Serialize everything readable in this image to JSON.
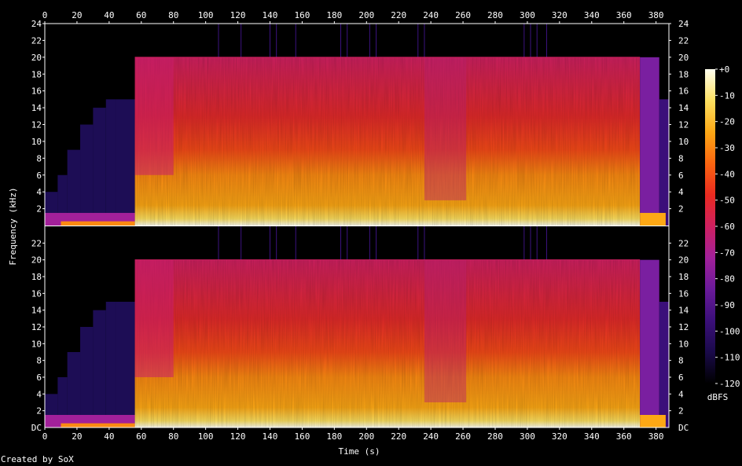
{
  "chart_data": {
    "type": "heatmap",
    "title": "",
    "xlabel": "Time (s)",
    "ylabel": "Frequency (kHz)",
    "xlim": [
      0,
      388
    ],
    "ylim": [
      0,
      24
    ],
    "x_ticks": [
      0,
      20,
      40,
      60,
      80,
      100,
      120,
      140,
      160,
      180,
      200,
      220,
      240,
      260,
      280,
      300,
      320,
      340,
      360,
      380
    ],
    "y_ticks": [
      2,
      4,
      6,
      8,
      10,
      12,
      14,
      16,
      18,
      20,
      22,
      24
    ],
    "bottom_tick_label": "DC",
    "channels": 2,
    "colorbar": {
      "label": "dBFS",
      "ticks": [
        "+0",
        "-10",
        "-20",
        "-30",
        "-40",
        "-50",
        "-60",
        "-70",
        "-80",
        "-90",
        "-100",
        "-110",
        "-120"
      ],
      "range": [
        -120,
        0
      ],
      "colors": [
        "#000000",
        "#1a0a4a",
        "#3b0f7a",
        "#6a1a9a",
        "#a2209a",
        "#cf2060",
        "#ea2a20",
        "#fb6510",
        "#fda815",
        "#fde060",
        "#fffff0"
      ]
    },
    "segments": [
      {
        "start": 0,
        "end": 56,
        "note": "fade-in, bandwidth steps up to 15 kHz"
      },
      {
        "start": 56,
        "end": 370,
        "cutoff_khz": 20
      },
      {
        "start": 370,
        "end": 388,
        "note": "fade-out"
      }
    ]
  },
  "footer": {
    "credit": "Created by SoX"
  },
  "colors": {
    "background": "#000000",
    "axis": "#ffffff"
  }
}
